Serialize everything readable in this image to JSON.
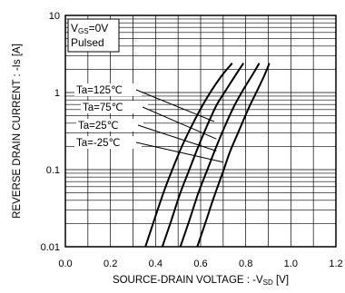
{
  "chart_data": {
    "type": "line",
    "title": "",
    "xlabel": "SOURCE-DRAIN VOLTAGE : -V",
    "xlabel_sub": "SD",
    "xlabel_unit": " [V]",
    "ylabel": "REVERSE DRAIN CURRENT : -Is [A]",
    "xlim": [
      0.0,
      1.2
    ],
    "ylim": [
      0.01,
      10
    ],
    "y_scale": "log",
    "grid": true,
    "x_ticks": [
      "0.0",
      "0.2",
      "0.4",
      "0.6",
      "0.8",
      "1.0",
      "1.2"
    ],
    "y_ticks": [
      "0.01",
      "0.1",
      "1",
      "10"
    ],
    "conditions": {
      "line1_main": "V",
      "line1_sub": "GS",
      "line1_rest": "=0V",
      "line2": "Pulsed"
    },
    "series": [
      {
        "name": "Ta=125℃",
        "x": [
          0.355,
          0.4,
          0.44,
          0.48,
          0.52,
          0.57,
          0.62,
          0.66,
          0.7,
          0.74
        ],
        "y": [
          0.01,
          0.025,
          0.055,
          0.11,
          0.21,
          0.42,
          0.78,
          1.2,
          1.75,
          2.4
        ]
      },
      {
        "name": "Ta=75℃",
        "x": [
          0.43,
          0.47,
          0.51,
          0.55,
          0.59,
          0.63,
          0.67,
          0.71,
          0.75,
          0.79
        ],
        "y": [
          0.01,
          0.022,
          0.05,
          0.1,
          0.2,
          0.38,
          0.68,
          1.05,
          1.6,
          2.4
        ]
      },
      {
        "name": "Ta=25℃",
        "x": [
          0.51,
          0.55,
          0.59,
          0.63,
          0.67,
          0.71,
          0.75,
          0.79,
          0.83,
          0.86
        ],
        "y": [
          0.01,
          0.022,
          0.05,
          0.1,
          0.2,
          0.38,
          0.68,
          1.1,
          1.7,
          2.4
        ]
      },
      {
        "name": "Ta=-25℃",
        "x": [
          0.585,
          0.62,
          0.66,
          0.7,
          0.73,
          0.77,
          0.81,
          0.85,
          0.88,
          0.905
        ],
        "y": [
          0.01,
          0.02,
          0.045,
          0.095,
          0.17,
          0.32,
          0.6,
          1.05,
          1.6,
          2.4
        ]
      }
    ],
    "legend": {
      "placement": "left-middle",
      "targets": [
        {
          "x": 0.66,
          "y": 0.42
        },
        {
          "x": 0.67,
          "y": 0.25
        },
        {
          "x": 0.67,
          "y": 0.175
        },
        {
          "x": 0.7,
          "y": 0.125
        }
      ]
    }
  }
}
